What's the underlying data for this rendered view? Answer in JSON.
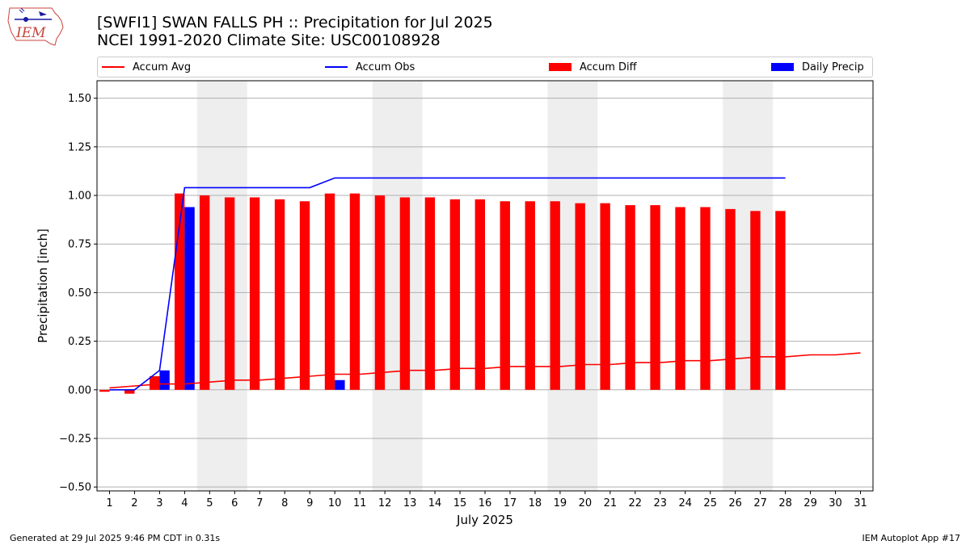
{
  "title": "[SWFI1] SWAN FALLS PH :: Precipitation for Jul 2025",
  "subtitle": "NCEI 1991-2020 Climate Site: USC00108928",
  "logo_text": "IEM",
  "footer_left": "Generated at 29 Jul 2025 9:46 PM CDT in 0.31s",
  "footer_right": "IEM Autoplot App #17",
  "legend": [
    {
      "label": "Accum Avg",
      "kind": "line",
      "color": "#ff0000"
    },
    {
      "label": "Accum Obs",
      "kind": "line",
      "color": "#0000ff"
    },
    {
      "label": "Accum Diff",
      "kind": "box",
      "color": "#ff0000"
    },
    {
      "label": "Daily Precip",
      "kind": "box",
      "color": "#0000ff"
    }
  ],
  "chart_data": {
    "type": "bar",
    "xlabel": "July 2025",
    "ylabel": "Precipitation [inch]",
    "xlim": [
      0.5,
      31.5
    ],
    "ylim": [
      -0.52,
      1.59
    ],
    "yticks": [
      -0.5,
      -0.25,
      0.0,
      0.25,
      0.5,
      0.75,
      1.0,
      1.25,
      1.5
    ],
    "ytick_labels": [
      "−0.50",
      "−0.25",
      "0.00",
      "0.25",
      "0.50",
      "0.75",
      "1.00",
      "1.25",
      "1.50"
    ],
    "grid": true,
    "legend_position": "top",
    "days": [
      1,
      2,
      3,
      4,
      5,
      6,
      7,
      8,
      9,
      10,
      11,
      12,
      13,
      14,
      15,
      16,
      17,
      18,
      19,
      20,
      21,
      22,
      23,
      24,
      25,
      26,
      27,
      28,
      29,
      30,
      31
    ],
    "weekend_spans": [
      [
        5,
        6
      ],
      [
        12,
        13
      ],
      [
        19,
        20
      ],
      [
        26,
        27
      ]
    ],
    "series": [
      {
        "name": "Accum Avg",
        "kind": "line",
        "color": "#ff0000",
        "x": [
          1,
          2,
          3,
          4,
          5,
          6,
          7,
          8,
          9,
          10,
          11,
          12,
          13,
          14,
          15,
          16,
          17,
          18,
          19,
          20,
          21,
          22,
          23,
          24,
          25,
          26,
          27,
          28,
          29,
          30,
          31
        ],
        "values": [
          0.01,
          0.02,
          0.03,
          0.03,
          0.04,
          0.05,
          0.05,
          0.06,
          0.07,
          0.08,
          0.08,
          0.09,
          0.1,
          0.1,
          0.11,
          0.11,
          0.12,
          0.12,
          0.12,
          0.13,
          0.13,
          0.14,
          0.14,
          0.15,
          0.15,
          0.16,
          0.17,
          0.17,
          0.18,
          0.18,
          0.19
        ]
      },
      {
        "name": "Accum Obs",
        "kind": "line",
        "color": "#0000ff",
        "x": [
          1,
          2,
          3,
          4,
          5,
          6,
          7,
          8,
          9,
          10,
          11,
          12,
          13,
          14,
          15,
          16,
          17,
          18,
          19,
          20,
          21,
          22,
          23,
          24,
          25,
          26,
          27,
          28
        ],
        "values": [
          0.0,
          0.0,
          0.1,
          1.04,
          1.04,
          1.04,
          1.04,
          1.04,
          1.04,
          1.09,
          1.09,
          1.09,
          1.09,
          1.09,
          1.09,
          1.09,
          1.09,
          1.09,
          1.09,
          1.09,
          1.09,
          1.09,
          1.09,
          1.09,
          1.09,
          1.09,
          1.09,
          1.09
        ]
      },
      {
        "name": "Accum Diff",
        "kind": "bar",
        "color": "#ff0000",
        "x": [
          1,
          2,
          3,
          4,
          5,
          6,
          7,
          8,
          9,
          10,
          11,
          12,
          13,
          14,
          15,
          16,
          17,
          18,
          19,
          20,
          21,
          22,
          23,
          24,
          25,
          26,
          27,
          28
        ],
        "values": [
          -0.01,
          -0.02,
          0.07,
          1.01,
          1.0,
          0.99,
          0.99,
          0.98,
          0.97,
          1.01,
          1.01,
          1.0,
          0.99,
          0.99,
          0.98,
          0.98,
          0.97,
          0.97,
          0.97,
          0.96,
          0.96,
          0.95,
          0.95,
          0.94,
          0.94,
          0.93,
          0.92,
          0.92
        ]
      },
      {
        "name": "Daily Precip",
        "kind": "bar",
        "color": "#0000ff",
        "x": [
          3,
          4,
          10
        ],
        "values": [
          0.1,
          0.94,
          0.05
        ]
      }
    ]
  }
}
